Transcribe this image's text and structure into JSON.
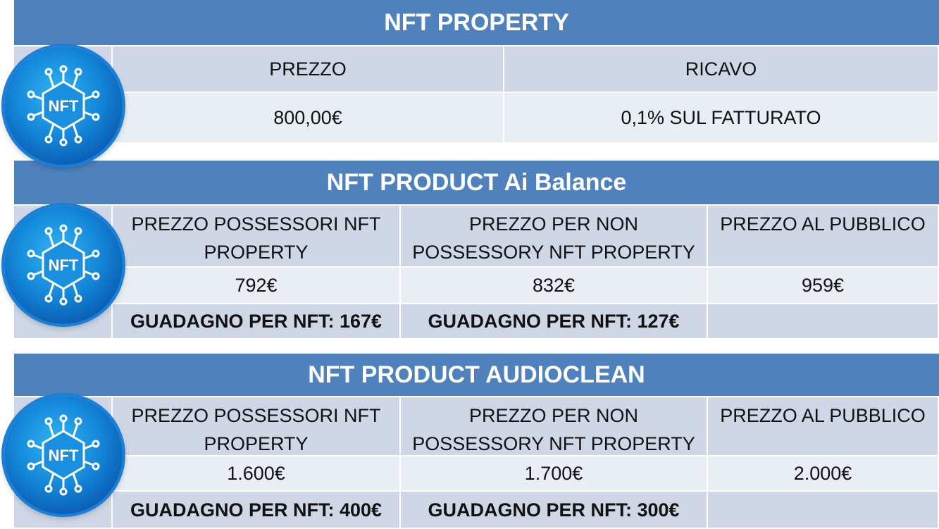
{
  "sections": [
    {
      "title": "NFT PROPERTY",
      "headers": [
        "PREZZO",
        "RICAVO"
      ],
      "values": [
        "800,00€",
        "0,1% SUL FATTURATO"
      ]
    },
    {
      "title": "NFT PRODUCT Ai Balance",
      "headers": [
        "PREZZO POSSESSORI NFT PROPERTY",
        "PREZZO PER NON POSSESSORY NFT PROPERTY",
        "PREZZO AL PUBBLICO"
      ],
      "values": [
        "792€",
        "832€",
        "959€"
      ],
      "gains": [
        "GUADAGNO PER NFT: 167€",
        "GUADAGNO PER NFT: 127€",
        ""
      ]
    },
    {
      "title": "NFT PRODUCT AUDIOCLEAN",
      "headers": [
        "PREZZO POSSESSORI NFT PROPERTY",
        "PREZZO PER NON POSSESSORY NFT PROPERTY",
        "PREZZO AL PUBBLICO"
      ],
      "values": [
        "1.600€",
        "1.700€",
        "2.000€"
      ],
      "gains": [
        "GUADAGNO PER NFT: 400€",
        "GUADAGNO PER NFT: 300€",
        ""
      ]
    }
  ],
  "logo": {
    "label": "NFT",
    "icon": "nft-circuit-icon"
  },
  "colors": {
    "header": "#4f81bd",
    "cell_dark": "#cfd7e7",
    "cell_light": "#e9edf4"
  }
}
